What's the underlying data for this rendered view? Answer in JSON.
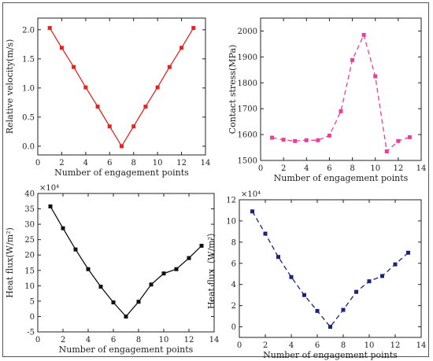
{
  "chart_data": [
    {
      "type": "line",
      "xlabel": "Number of engagement points",
      "ylabel": "Relative velocity(m/s)",
      "multiplier": "",
      "xlim": [
        0,
        14
      ],
      "ylim": [
        -0.15,
        2.2
      ],
      "xticks": [
        0,
        2,
        4,
        6,
        8,
        10,
        12,
        14
      ],
      "yticks": [
        0.0,
        0.5,
        1.0,
        1.5,
        2.0
      ],
      "ytick_labels": [
        "0.0",
        "0.5",
        "1.0",
        "1.5",
        "2.0"
      ],
      "grid": false,
      "series": [
        {
          "color": "#e8231f",
          "dash": "solid",
          "x": [
            1,
            2,
            3,
            4,
            5,
            6,
            7,
            8,
            9,
            10,
            11,
            12,
            13
          ],
          "values": [
            2.03,
            1.69,
            1.36,
            1.01,
            0.68,
            0.34,
            0.0,
            0.34,
            0.68,
            1.01,
            1.36,
            1.69,
            2.03
          ]
        }
      ]
    },
    {
      "type": "line",
      "xlabel": "Number of engagement points",
      "ylabel": "Contact stress(MPa)",
      "multiplier": "",
      "xlim": [
        0,
        14
      ],
      "ylim": [
        1500,
        2050
      ],
      "xticks": [
        0,
        2,
        4,
        6,
        8,
        10,
        12,
        14
      ],
      "yticks": [
        1500,
        1600,
        1700,
        1800,
        1900,
        2000
      ],
      "ytick_labels": [
        "1500",
        "1600",
        "1700",
        "1800",
        "1900",
        "2000"
      ],
      "grid": false,
      "series": [
        {
          "color": "#e8409a",
          "dash": "dashed",
          "x": [
            1,
            2,
            3,
            4,
            5,
            6,
            7,
            8,
            9,
            10,
            11,
            12,
            13
          ],
          "values": [
            1588,
            1580,
            1575,
            1578,
            1578,
            1596,
            1690,
            1888,
            1985,
            1825,
            1535,
            1575,
            1590
          ]
        }
      ]
    },
    {
      "type": "line",
      "xlabel": "Number of engagement points",
      "ylabel": "Heat flux(W/m²)",
      "multiplier": "×10⁴",
      "xlim": [
        0,
        14
      ],
      "ylim": [
        -5,
        40
      ],
      "xticks": [
        0,
        2,
        4,
        6,
        8,
        10,
        12,
        14
      ],
      "yticks": [
        -5,
        0,
        5,
        10,
        15,
        20,
        25,
        30,
        35,
        40
      ],
      "ytick_labels": [
        "-5",
        "0",
        "5",
        "10",
        "15",
        "20",
        "25",
        "30",
        "35",
        "40"
      ],
      "grid": false,
      "series": [
        {
          "color": "#111111",
          "dash": "solid",
          "x": [
            1,
            2,
            3,
            4,
            5,
            6,
            7,
            8,
            9,
            10,
            11,
            12,
            13
          ],
          "values": [
            35.8,
            28.7,
            21.8,
            15.4,
            9.7,
            4.6,
            0.0,
            4.8,
            10.4,
            14.0,
            15.4,
            19.0,
            23.0
          ]
        }
      ]
    },
    {
      "type": "line",
      "xlabel": "Number of engagement points",
      "ylabel": "Heat flux（W/m²）",
      "multiplier": "×10⁴",
      "xlim": [
        0,
        14
      ],
      "ylim": [
        -1,
        12
      ],
      "xticks": [
        0,
        2,
        4,
        6,
        8,
        10,
        12,
        14
      ],
      "yticks": [
        0,
        2,
        4,
        6,
        8,
        10,
        12
      ],
      "ytick_labels": [
        "0",
        "2",
        "4",
        "6",
        "8",
        "10",
        "12"
      ],
      "grid": false,
      "series": [
        {
          "color": "#1a237e",
          "dash": "dashed",
          "x": [
            1,
            2,
            3,
            4,
            5,
            6,
            7,
            8,
            9,
            10,
            11,
            12,
            13
          ],
          "values": [
            10.9,
            8.8,
            6.6,
            4.7,
            3.0,
            1.5,
            0.0,
            1.6,
            3.3,
            4.3,
            4.8,
            5.9,
            7.0
          ]
        }
      ]
    }
  ]
}
